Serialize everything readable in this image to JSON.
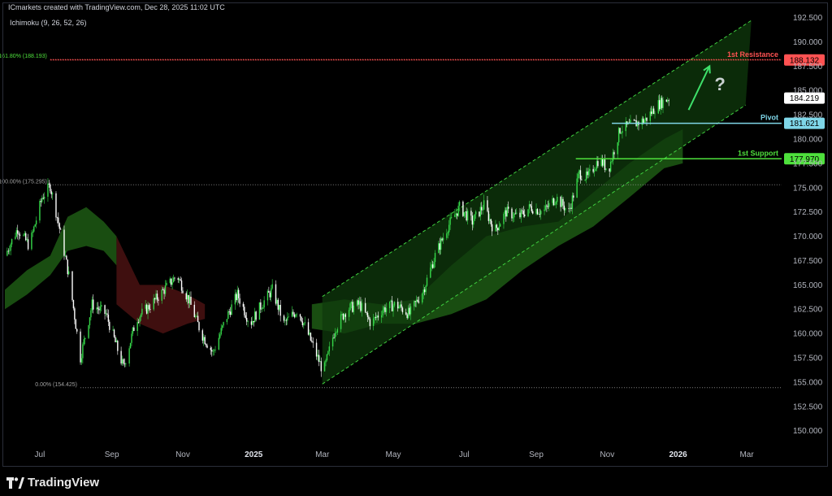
{
  "header": {
    "attribution": "ICmarkets created with TradingView.com, Dec 28, 2025 11:02 UTC"
  },
  "indicator": {
    "label": "Ichimoku (9, 26, 52, 26)"
  },
  "brand": {
    "name": "TradingView",
    "icon": "tradingview-logo-icon"
  },
  "colors": {
    "background": "#000000",
    "candle_up": "#36d94a",
    "candle_down": "#ffffff",
    "cloud_bull": "#1d5a14",
    "cloud_bear": "#4a1212",
    "channel_fill": "#0f3a0c",
    "channel_line": "#3fcf3f",
    "resistance": "#ff5252",
    "pivot": "#7fd6e8",
    "support": "#4ee03c",
    "arrow": "#3ee06a",
    "question": "#c8d0d0"
  },
  "chart_data": {
    "type": "candlestick",
    "title": "",
    "xlabel": "",
    "ylabel": "",
    "ylim": [
      148.3,
      193.3
    ],
    "x_range": [
      "2024-06-01",
      "2026-03-31"
    ],
    "y_ticks": [
      "192.500",
      "190.000",
      "187.500",
      "185.000",
      "182.500",
      "180.000",
      "177.500",
      "175.000",
      "172.500",
      "170.000",
      "167.500",
      "165.000",
      "162.500",
      "160.000",
      "157.500",
      "155.000",
      "152.500",
      "150.000"
    ],
    "x_ticks": [
      {
        "label": "Jul",
        "date": "2024-07-01",
        "bold": false
      },
      {
        "label": "Sep",
        "date": "2024-09-01",
        "bold": false
      },
      {
        "label": "Nov",
        "date": "2024-11-01",
        "bold": false
      },
      {
        "label": "2025",
        "date": "2025-01-01",
        "bold": true
      },
      {
        "label": "Mar",
        "date": "2025-03-01",
        "bold": false
      },
      {
        "label": "May",
        "date": "2025-05-01",
        "bold": false
      },
      {
        "label": "Jul",
        "date": "2025-07-01",
        "bold": false
      },
      {
        "label": "Sep",
        "date": "2025-09-01",
        "bold": false
      },
      {
        "label": "Nov",
        "date": "2025-11-01",
        "bold": false
      },
      {
        "label": "2026",
        "date": "2026-01-01",
        "bold": true
      },
      {
        "label": "Mar",
        "date": "2026-03-01",
        "bold": false
      }
    ],
    "price_path": [
      {
        "date": "2024-06-01",
        "price": 168.0
      },
      {
        "date": "2024-06-12",
        "price": 170.8
      },
      {
        "date": "2024-06-22",
        "price": 169.0
      },
      {
        "date": "2024-07-03",
        "price": 174.0
      },
      {
        "date": "2024-07-10",
        "price": 175.2
      },
      {
        "date": "2024-07-16",
        "price": 172.0
      },
      {
        "date": "2024-07-26",
        "price": 166.0
      },
      {
        "date": "2024-08-05",
        "price": 157.5
      },
      {
        "date": "2024-08-15",
        "price": 163.0
      },
      {
        "date": "2024-08-27",
        "price": 162.0
      },
      {
        "date": "2024-09-11",
        "price": 156.5
      },
      {
        "date": "2024-09-22",
        "price": 161.5
      },
      {
        "date": "2024-10-05",
        "price": 163.0
      },
      {
        "date": "2024-10-16",
        "price": 164.5
      },
      {
        "date": "2024-10-27",
        "price": 166.0
      },
      {
        "date": "2024-11-06",
        "price": 163.5
      },
      {
        "date": "2024-11-17",
        "price": 160.0
      },
      {
        "date": "2024-11-27",
        "price": 158.0
      },
      {
        "date": "2024-12-08",
        "price": 161.5
      },
      {
        "date": "2024-12-18",
        "price": 164.0
      },
      {
        "date": "2024-12-29",
        "price": 161.0
      },
      {
        "date": "2025-01-08",
        "price": 163.0
      },
      {
        "date": "2025-01-17",
        "price": 164.5
      },
      {
        "date": "2025-01-27",
        "price": 161.0
      },
      {
        "date": "2025-02-08",
        "price": 162.5
      },
      {
        "date": "2025-02-20",
        "price": 159.0
      },
      {
        "date": "2025-03-02",
        "price": 156.0
      },
      {
        "date": "2025-03-12",
        "price": 160.5
      },
      {
        "date": "2025-03-22",
        "price": 162.5
      },
      {
        "date": "2025-04-02",
        "price": 163.0
      },
      {
        "date": "2025-04-12",
        "price": 161.0
      },
      {
        "date": "2025-04-22",
        "price": 162.5
      },
      {
        "date": "2025-05-03",
        "price": 163.0
      },
      {
        "date": "2025-05-15",
        "price": 162.0
      },
      {
        "date": "2025-05-27",
        "price": 164.5
      },
      {
        "date": "2025-06-06",
        "price": 168.0
      },
      {
        "date": "2025-06-17",
        "price": 171.0
      },
      {
        "date": "2025-06-27",
        "price": 173.0
      },
      {
        "date": "2025-07-08",
        "price": 171.5
      },
      {
        "date": "2025-07-18",
        "price": 173.2
      },
      {
        "date": "2025-07-27",
        "price": 170.5
      },
      {
        "date": "2025-08-06",
        "price": 172.5
      },
      {
        "date": "2025-08-17",
        "price": 172.0
      },
      {
        "date": "2025-08-27",
        "price": 173.0
      },
      {
        "date": "2025-09-07",
        "price": 172.5
      },
      {
        "date": "2025-09-18",
        "price": 174.0
      },
      {
        "date": "2025-09-29",
        "price": 172.5
      },
      {
        "date": "2025-10-08",
        "price": 176.5
      },
      {
        "date": "2025-10-15",
        "price": 176.0
      },
      {
        "date": "2025-10-25",
        "price": 178.0
      },
      {
        "date": "2025-11-02",
        "price": 176.8
      },
      {
        "date": "2025-11-12",
        "price": 181.0
      },
      {
        "date": "2025-11-23",
        "price": 181.5
      },
      {
        "date": "2025-12-04",
        "price": 182.0
      },
      {
        "date": "2025-12-14",
        "price": 183.5
      },
      {
        "date": "2025-12-24",
        "price": 184.219
      }
    ],
    "ichimoku_cloud": {
      "bull": [
        {
          "date": "2024-06-01",
          "top": 164.5,
          "bottom": 162.5
        },
        {
          "date": "2024-06-20",
          "top": 166.5,
          "bottom": 164.0
        },
        {
          "date": "2024-07-10",
          "top": 168.0,
          "bottom": 166.0
        },
        {
          "date": "2024-07-25",
          "top": 172.0,
          "bottom": 168.5
        },
        {
          "date": "2024-08-10",
          "top": 173.0,
          "bottom": 169.0
        },
        {
          "date": "2024-08-25",
          "top": 171.5,
          "bottom": 168.5
        },
        {
          "date": "2024-09-05",
          "top": 170.0,
          "bottom": 167.0
        }
      ],
      "bear": [
        {
          "date": "2024-09-05",
          "top": 170.0,
          "bottom": 163.0
        },
        {
          "date": "2024-09-25",
          "top": 165.0,
          "bottom": 161.0
        },
        {
          "date": "2024-10-15",
          "top": 165.0,
          "bottom": 160.0
        },
        {
          "date": "2024-11-05",
          "top": 164.0,
          "bottom": 161.0
        },
        {
          "date": "2024-11-20",
          "top": 163.0,
          "bottom": 161.5
        }
      ],
      "bull2": [
        {
          "date": "2025-02-20",
          "top": 163.0,
          "bottom": 160.5
        },
        {
          "date": "2025-03-20",
          "top": 163.5,
          "bottom": 160.0
        },
        {
          "date": "2025-04-20",
          "top": 163.0,
          "bottom": 161.0
        },
        {
          "date": "2025-05-20",
          "top": 163.5,
          "bottom": 161.0
        },
        {
          "date": "2025-06-20",
          "top": 167.0,
          "bottom": 162.0
        },
        {
          "date": "2025-07-20",
          "top": 170.0,
          "bottom": 163.5
        },
        {
          "date": "2025-08-20",
          "top": 171.0,
          "bottom": 166.5
        },
        {
          "date": "2025-09-20",
          "top": 171.5,
          "bottom": 169.0
        },
        {
          "date": "2025-10-20",
          "top": 174.5,
          "bottom": 171.0
        },
        {
          "date": "2025-11-20",
          "top": 177.5,
          "bottom": 174.0
        },
        {
          "date": "2025-12-20",
          "top": 180.0,
          "bottom": 177.0
        },
        {
          "date": "2026-01-05",
          "top": 181.0,
          "bottom": 177.5
        }
      ]
    },
    "channel": {
      "lower": [
        {
          "date": "2025-03-01",
          "price": 154.8
        },
        {
          "date": "2026-02-28",
          "price": 183.5
        }
      ],
      "upper": [
        {
          "date": "2025-03-01",
          "price": 163.8
        },
        {
          "date": "2026-03-05",
          "price": 192.2
        }
      ]
    },
    "fib_levels": [
      {
        "label": "161.80% (188.193)",
        "price": 188.193,
        "color": "#ff5252",
        "start": "2024-07-10"
      },
      {
        "label": "100.00% (175.295)",
        "price": 175.295,
        "color": "#a0a0a0",
        "start": "2024-07-10"
      },
      {
        "label": "0.00% (154.425)",
        "price": 154.425,
        "color": "#a0a0a0",
        "start": "2024-08-05"
      }
    ],
    "levels": [
      {
        "name": "1st Resistance",
        "price": 188.132,
        "price_label": "188.132",
        "color": "#ff5252",
        "start": "2024-07-10"
      },
      {
        "name": "Pivot",
        "price": 181.621,
        "price_label": "181.621",
        "color": "#7fd6e8",
        "start": "2025-11-05"
      },
      {
        "name": "1st Support",
        "price": 177.97,
        "price_label": "177.970",
        "color": "#4ee03c",
        "start": "2025-10-05"
      }
    ],
    "last_price": {
      "price": 184.219,
      "label": "184.219"
    },
    "annotations": [
      {
        "type": "arrow",
        "from": {
          "date": "2026-01-10",
          "price": 183.0
        },
        "to": {
          "date": "2026-01-28",
          "price": 187.5
        }
      },
      {
        "type": "text",
        "text": "?",
        "date": "2026-02-06",
        "price": 185.0
      }
    ]
  }
}
